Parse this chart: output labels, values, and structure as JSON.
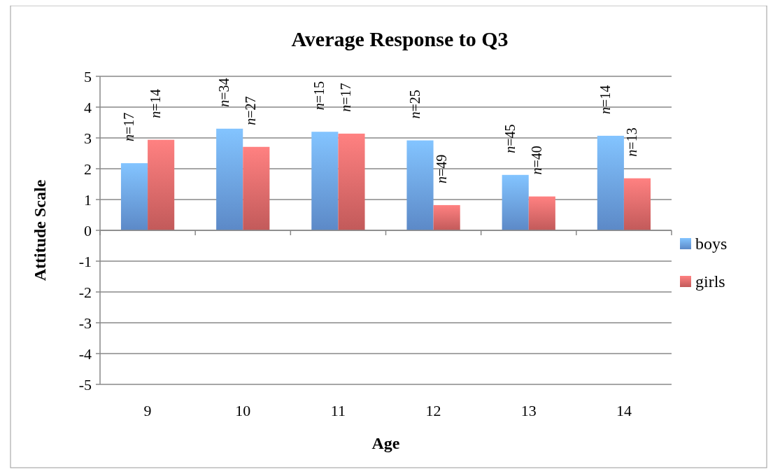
{
  "chart_data": {
    "type": "bar",
    "title": "Average Response to Q3",
    "xlabel": "Age",
    "ylabel": "Attitude Scale",
    "categories": [
      "9",
      "10",
      "11",
      "12",
      "13",
      "14"
    ],
    "series": [
      {
        "name": "boys",
        "color": "#6a9ee6",
        "values": [
          2.18,
          3.3,
          3.2,
          2.92,
          1.8,
          3.07
        ]
      },
      {
        "name": "girls",
        "color": "#e06868",
        "values": [
          2.94,
          2.71,
          3.14,
          0.82,
          1.1,
          1.69
        ]
      }
    ],
    "annotations": [
      {
        "text": "n=17",
        "x": "9",
        "y": 2.18
      },
      {
        "text": "n=14",
        "x": "9",
        "y": 2.94
      },
      {
        "text": "n=34",
        "x": "10",
        "y": 3.3
      },
      {
        "text": "n=27",
        "x": "10",
        "y": 2.71
      },
      {
        "text": "n=15",
        "x": "11",
        "y": 3.2
      },
      {
        "text": "n=17",
        "x": "11",
        "y": 3.14
      },
      {
        "text": "n=25",
        "x": "12",
        "y": 2.92
      },
      {
        "text": "n=49",
        "x": "12",
        "y": 0.82
      },
      {
        "text": "n=45",
        "x": "13",
        "y": 1.8
      },
      {
        "text": "n=40",
        "x": "13",
        "y": 1.1
      },
      {
        "text": "n=14",
        "x": "14",
        "y": 3.07
      },
      {
        "text": "n=13",
        "x": "14",
        "y": 1.69
      }
    ],
    "ylim": [
      -5,
      5
    ],
    "yticks": [
      -5,
      -4,
      -3,
      -2,
      -1,
      0,
      1,
      2,
      3,
      4,
      5
    ],
    "grid": "y",
    "legend": "right"
  }
}
